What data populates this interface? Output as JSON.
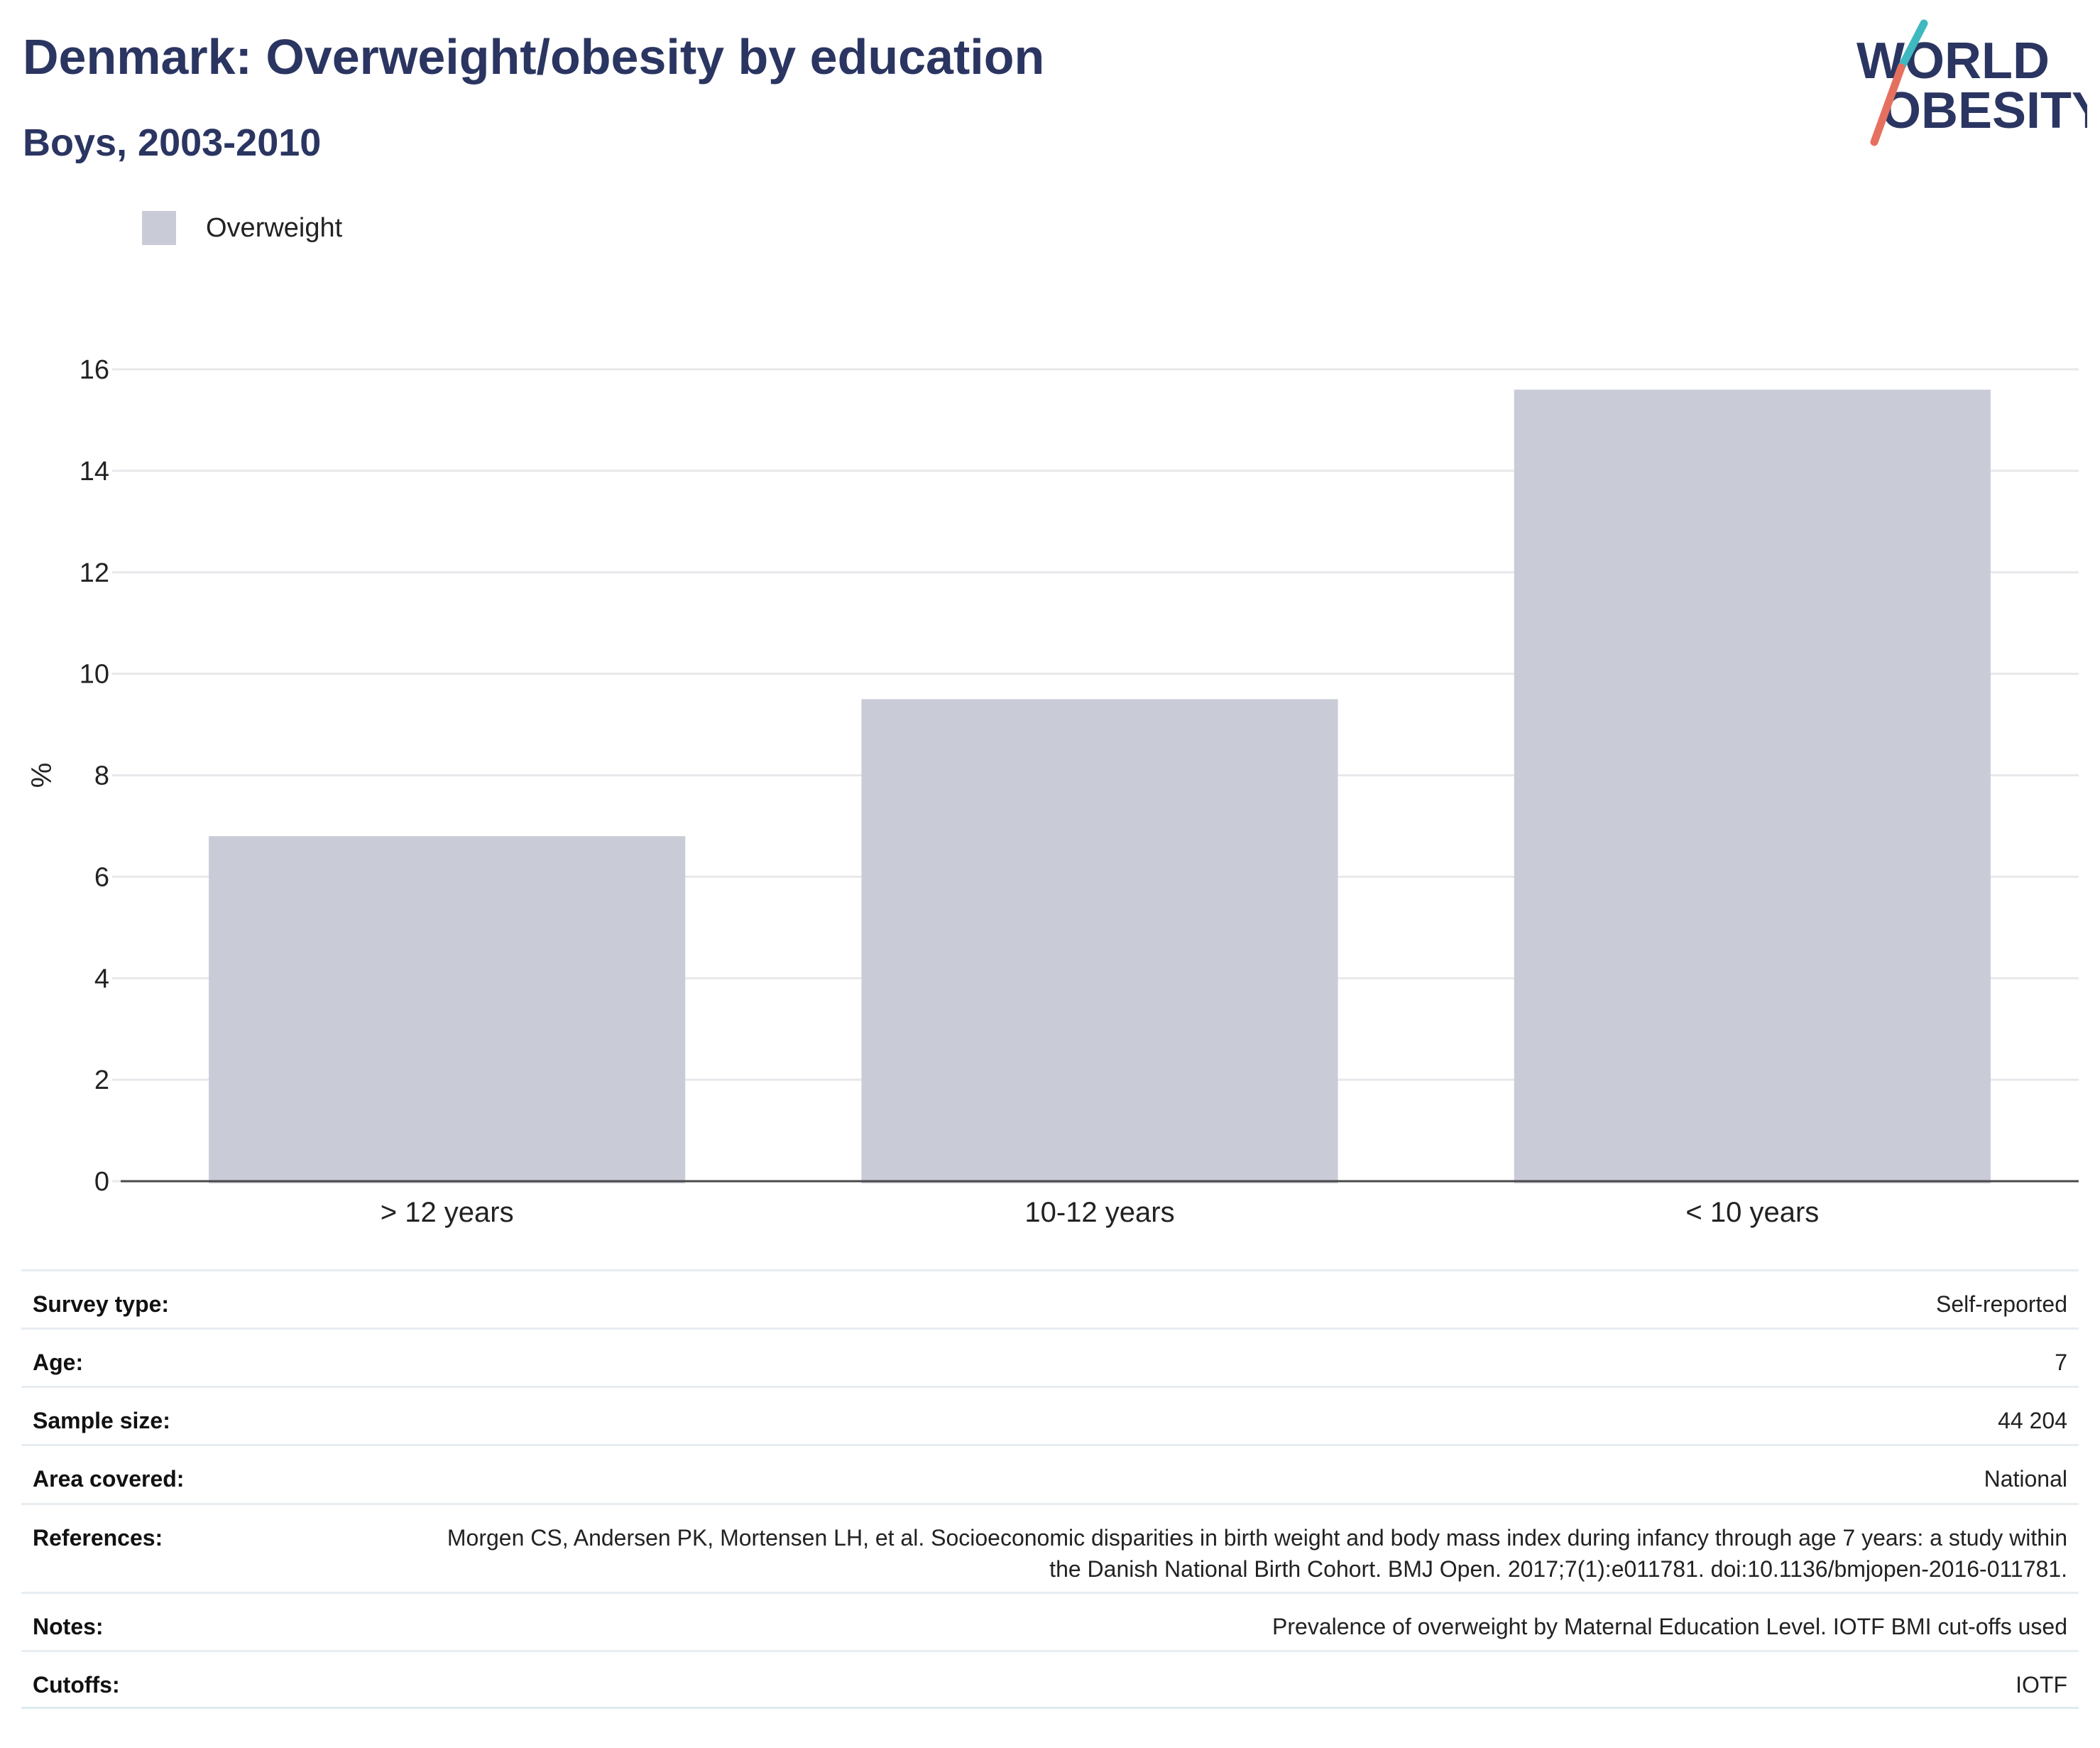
{
  "header": {
    "title": "Denmark: Overweight/obesity by education",
    "subtitle": "Boys, 2003-2010"
  },
  "logo": {
    "line1": "WORLD",
    "line2": "OBESITY",
    "text_color": "#2b3561",
    "slash_top_color": "#3fb8c0",
    "slash_bottom_color": "#e5705f"
  },
  "colors": {
    "bar": "#c9cbd7",
    "grid": "#e8e8ec",
    "axis": "#4a4a4a",
    "title": "#2b3561"
  },
  "chart_data": {
    "type": "bar",
    "categories": [
      "> 12 years",
      "10-12 years",
      "< 10 years"
    ],
    "series": [
      {
        "name": "Overweight",
        "values": [
          6.8,
          9.5,
          15.6
        ]
      }
    ],
    "ylabel": "%",
    "xlabel": "",
    "ylim": [
      0,
      16
    ],
    "yticks": [
      0,
      2,
      4,
      6,
      8,
      10,
      12,
      14,
      16
    ],
    "grid": true,
    "legend_position": "top-left"
  },
  "metadata": [
    {
      "label": "Survey type:",
      "value": "Self-reported"
    },
    {
      "label": "Age:",
      "value": "7"
    },
    {
      "label": "Sample size:",
      "value": "44 204"
    },
    {
      "label": "Area covered:",
      "value": "National"
    },
    {
      "label": "References:",
      "value": "Morgen CS, Andersen PK, Mortensen LH, et al. Socioeconomic disparities in birth weight and body mass index during infancy through age 7 years: a study within the Danish National Birth Cohort. BMJ Open. 2017;7(1):e011781. doi:10.1136/bmjopen-2016-011781."
    },
    {
      "label": "Notes:",
      "value": "Prevalence of overweight by Maternal Education Level. IOTF BMI cut-offs used"
    },
    {
      "label": "Cutoffs:",
      "value": "IOTF"
    }
  ]
}
